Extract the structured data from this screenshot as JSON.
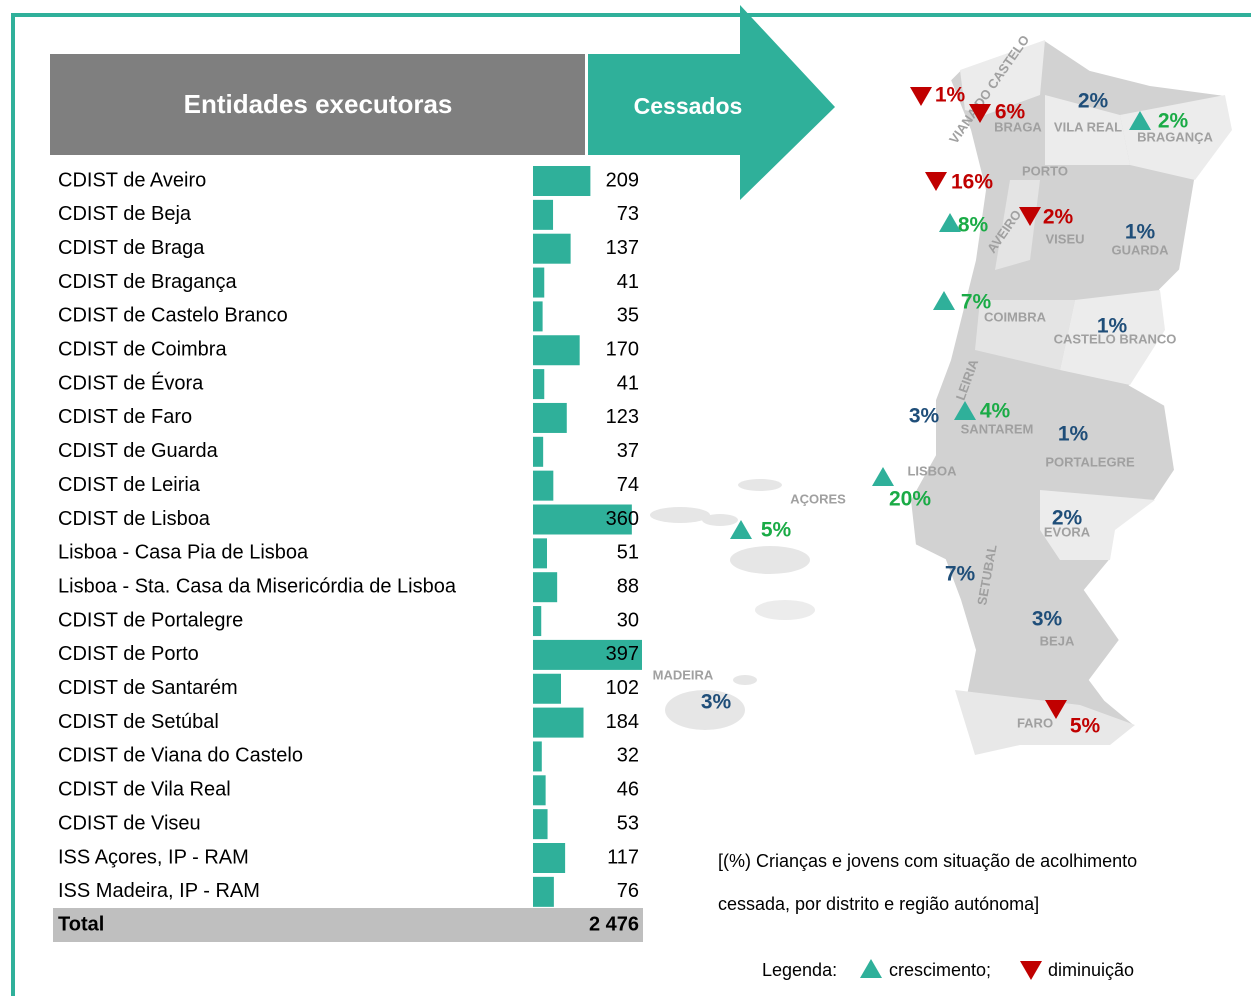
{
  "table": {
    "header": "Entidades executoras",
    "column": "Cessados",
    "rows": [
      [
        "CDIST de Aveiro",
        209
      ],
      [
        "CDIST de Beja",
        73
      ],
      [
        "CDIST de Braga",
        137
      ],
      [
        "CDIST de Bragança",
        41
      ],
      [
        "CDIST de Castelo Branco",
        35
      ],
      [
        "CDIST de Coimbra",
        170
      ],
      [
        "CDIST de Évora",
        41
      ],
      [
        "CDIST de Faro",
        123
      ],
      [
        "CDIST de Guarda",
        37
      ],
      [
        "CDIST de Leiria",
        74
      ],
      [
        "CDIST de Lisboa",
        360
      ],
      [
        "Lisboa - Casa Pia de Lisboa",
        51
      ],
      [
        "Lisboa - Sta. Casa da Misericórdia de Lisboa",
        88
      ],
      [
        "CDIST de Portalegre",
        30
      ],
      [
        "CDIST de Porto",
        397
      ],
      [
        "CDIST de Santarém",
        102
      ],
      [
        "CDIST de Setúbal",
        184
      ],
      [
        "CDIST de Viana do Castelo",
        32
      ],
      [
        "CDIST de Vila Real",
        46
      ],
      [
        "CDIST de Viseu",
        53
      ],
      [
        "ISS Açores, IP - RAM",
        117
      ],
      [
        "ISS Madeira, IP - RAM",
        76
      ]
    ],
    "total": [
      "Total",
      "2 476"
    ]
  },
  "map": {
    "regions": [
      {
        "name": "VIANA DO CASTELO",
        "pct": "1%",
        "trend": "down"
      },
      {
        "name": "BRAGA",
        "pct": "6%",
        "trend": "down"
      },
      {
        "name": "VILA REAL",
        "pct": "2%",
        "trend": null
      },
      {
        "name": "BRAGANÇA",
        "pct": "2%",
        "trend": "up"
      },
      {
        "name": "PORTO",
        "pct": "16%",
        "trend": "down"
      },
      {
        "name": "AVEIRO",
        "pct": "8%",
        "trend": "up"
      },
      {
        "name": "VISEU",
        "pct": "2%",
        "trend": "down"
      },
      {
        "name": "GUARDA",
        "pct": "1%",
        "trend": null
      },
      {
        "name": "COIMBRA",
        "pct": "7%",
        "trend": "up"
      },
      {
        "name": "CASTELO BRANCO",
        "pct": "1%",
        "trend": null
      },
      {
        "name": "LEIRIA",
        "pct": "3%",
        "trend": null
      },
      {
        "name": "SANTAREM",
        "pct": "4%",
        "trend": "up"
      },
      {
        "name": "PORTALEGRE",
        "pct": "1%",
        "trend": null
      },
      {
        "name": "LISBOA",
        "pct": "20%",
        "trend": "up"
      },
      {
        "name": "AÇORES",
        "pct": "5%",
        "trend": "up"
      },
      {
        "name": "EVORA",
        "pct": "2%",
        "trend": null
      },
      {
        "name": "SETUBAL",
        "pct": "7%",
        "trend": null
      },
      {
        "name": "BEJA",
        "pct": "3%",
        "trend": null
      },
      {
        "name": "MADEIRA",
        "pct": "3%",
        "trend": null
      },
      {
        "name": "FARO",
        "pct": "5%",
        "trend": "down"
      }
    ],
    "caption": [
      "[(%) Crianças e jovens com situação de acolhimento",
      "cessada, por distrito e região autónoma]"
    ],
    "legend": {
      "label": "Legenda:",
      "up": "crescimento;",
      "down": "diminuição"
    }
  }
}
